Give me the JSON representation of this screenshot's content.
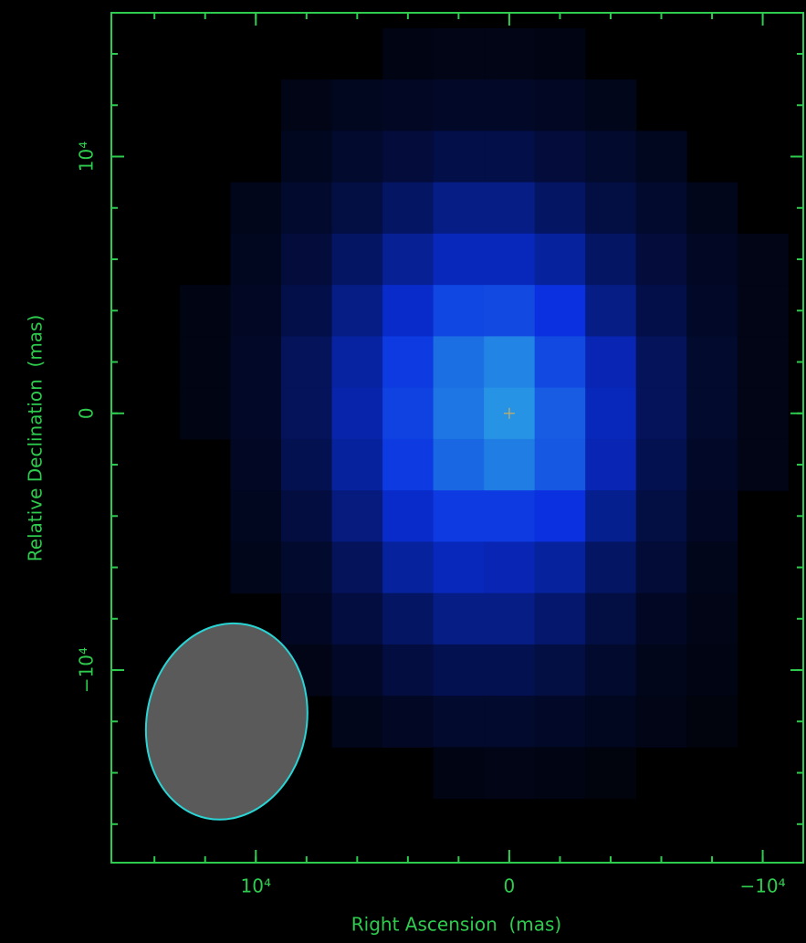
{
  "chart_data": {
    "type": "heatmap",
    "xlabel": "Right Ascension  (mas)",
    "ylabel": "Relative Declination  (mas)",
    "xlim": [
      15700,
      -11600
    ],
    "ylim": [
      -17500,
      15600
    ],
    "xticks": [
      {
        "value": 10000,
        "label": "10⁴"
      },
      0,
      {
        "value": -10000,
        "label": "−10⁴"
      }
    ],
    "yticks": [
      {
        "value": 10000,
        "label": "10⁴"
      },
      0,
      {
        "value": -10000,
        "label": "−10⁴"
      }
    ],
    "xminor": [
      14000,
      12000,
      10000,
      8000,
      6000,
      4000,
      2000,
      0,
      -2000,
      -4000,
      -6000,
      -8000,
      -10000
    ],
    "yminor": [
      14000,
      12000,
      10000,
      8000,
      6000,
      4000,
      2000,
      0,
      -2000,
      -4000,
      -6000,
      -8000,
      -10000,
      -12000,
      -14000,
      -16000
    ],
    "axis_color": "#2ecc4e",
    "colormap": [
      "#000000",
      "#0a30e0",
      "#2a9ee6"
    ],
    "x": [
      12000,
      10000,
      8000,
      6000,
      4000,
      2000,
      0,
      -2000,
      -4000,
      -6000,
      -8000,
      -10000
    ],
    "y": [
      14000,
      12000,
      10000,
      8000,
      6000,
      4000,
      2000,
      0,
      -2000,
      -4000,
      -6000,
      -8000,
      -10000,
      -12000,
      -14000
    ],
    "z": [
      [
        null,
        null,
        null,
        null,
        0.04,
        0.05,
        0.05,
        0.04,
        null,
        null,
        null,
        null
      ],
      [
        null,
        null,
        0.05,
        0.07,
        0.08,
        0.09,
        0.09,
        0.08,
        0.06,
        null,
        null,
        null
      ],
      [
        null,
        null,
        0.07,
        0.1,
        0.13,
        0.16,
        0.16,
        0.13,
        0.1,
        0.07,
        null,
        null
      ],
      [
        null,
        0.06,
        0.1,
        0.15,
        0.22,
        0.3,
        0.3,
        0.22,
        0.15,
        0.1,
        0.06,
        null
      ],
      [
        null,
        0.07,
        0.13,
        0.22,
        0.33,
        0.42,
        0.42,
        0.35,
        0.22,
        0.13,
        0.08,
        0.05
      ],
      [
        0.04,
        0.08,
        0.16,
        0.3,
        0.45,
        0.6,
        0.62,
        0.5,
        0.3,
        0.16,
        0.09,
        0.05
      ],
      [
        0.04,
        0.09,
        0.2,
        0.36,
        0.55,
        0.78,
        0.88,
        0.62,
        0.4,
        0.2,
        0.1,
        0.05
      ],
      [
        0.04,
        0.09,
        0.2,
        0.38,
        0.58,
        0.82,
        0.95,
        0.7,
        0.42,
        0.2,
        0.1,
        0.05
      ],
      [
        null,
        0.08,
        0.18,
        0.35,
        0.55,
        0.75,
        0.85,
        0.68,
        0.4,
        0.18,
        0.09,
        0.05
      ],
      [
        null,
        0.07,
        0.14,
        0.28,
        0.45,
        0.55,
        0.55,
        0.5,
        0.32,
        0.15,
        0.08,
        null
      ],
      [
        null,
        0.06,
        0.1,
        0.2,
        0.35,
        0.42,
        0.4,
        0.35,
        0.22,
        0.12,
        0.06,
        null
      ],
      [
        null,
        null,
        0.08,
        0.14,
        0.22,
        0.3,
        0.3,
        0.24,
        0.15,
        0.08,
        0.05,
        null
      ],
      [
        null,
        null,
        0.05,
        0.09,
        0.14,
        0.18,
        0.18,
        0.15,
        0.1,
        0.06,
        0.04,
        null
      ],
      [
        null,
        null,
        null,
        0.06,
        0.08,
        0.1,
        0.1,
        0.09,
        0.07,
        0.05,
        0.03,
        null
      ],
      [
        null,
        null,
        null,
        null,
        null,
        0.04,
        0.05,
        0.04,
        0.03,
        null,
        null,
        null
      ]
    ],
    "cell_size": 2000,
    "beam": {
      "x": 11150,
      "y": -12000,
      "width": 6300,
      "height": 7700,
      "angle": 12,
      "color": "#5a5a5a",
      "edge": "#2ad4d4"
    },
    "marker": {
      "x": 0,
      "y": 0,
      "color": "#c8b060"
    }
  }
}
